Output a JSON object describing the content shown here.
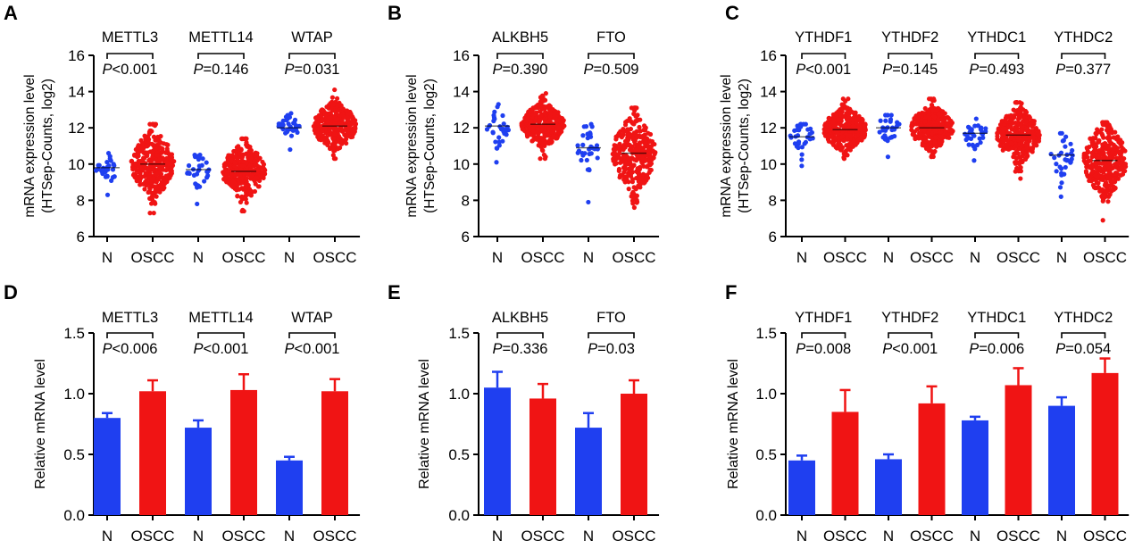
{
  "colors": {
    "normal": "#1f3ff0",
    "oscc": "#f01414",
    "axis": "#000000"
  },
  "chart_data": [
    {
      "panel": "A",
      "type": "scatter",
      "ylabel": "mRNA expression level (HTSep-Counts, log2)",
      "ylim": [
        6,
        16
      ],
      "yticks": [
        6,
        8,
        10,
        12,
        14,
        16
      ],
      "categories": [
        "N",
        "OSCC",
        "N",
        "OSCC",
        "N",
        "OSCC"
      ],
      "genes": [
        {
          "name": "METTL3",
          "p": "<0.001"
        },
        {
          "name": "METTL14",
          "p": "=0.146"
        },
        {
          "name": "WTAP",
          "p": "=0.031"
        }
      ],
      "series": [
        {
          "group": "N",
          "n": 32,
          "median": 9.8,
          "spread": 0.45,
          "min": 8.3,
          "max": 10.6
        },
        {
          "group": "OSCC",
          "n": 330,
          "median": 10.0,
          "spread": 0.9,
          "min": 7.3,
          "max": 12.2
        },
        {
          "group": "N",
          "n": 32,
          "median": 9.7,
          "spread": 0.45,
          "min": 7.8,
          "max": 10.5
        },
        {
          "group": "OSCC",
          "n": 330,
          "median": 9.6,
          "spread": 0.75,
          "min": 7.4,
          "max": 11.4
        },
        {
          "group": "N",
          "n": 32,
          "median": 12.0,
          "spread": 0.35,
          "min": 10.8,
          "max": 12.8
        },
        {
          "group": "OSCC",
          "n": 330,
          "median": 12.1,
          "spread": 0.65,
          "min": 10.3,
          "max": 14.1
        }
      ]
    },
    {
      "panel": "B",
      "type": "scatter",
      "ylabel": "mRNA expression level (HTSep-Counts, log2)",
      "ylim": [
        6,
        16
      ],
      "yticks": [
        6,
        8,
        10,
        12,
        14,
        16
      ],
      "categories": [
        "N",
        "OSCC",
        "N",
        "OSCC"
      ],
      "genes": [
        {
          "name": "ALKBH5",
          "p": "=0.390"
        },
        {
          "name": "FTO",
          "p": "=0.509"
        }
      ],
      "series": [
        {
          "group": "N",
          "n": 32,
          "median": 12.1,
          "spread": 0.55,
          "min": 10.1,
          "max": 13.3
        },
        {
          "group": "OSCC",
          "n": 330,
          "median": 12.2,
          "spread": 0.6,
          "min": 10.3,
          "max": 13.9
        },
        {
          "group": "N",
          "n": 32,
          "median": 10.9,
          "spread": 0.7,
          "min": 7.9,
          "max": 12.2
        },
        {
          "group": "OSCC",
          "n": 330,
          "median": 10.6,
          "spread": 1.05,
          "min": 7.6,
          "max": 13.1
        }
      ]
    },
    {
      "panel": "C",
      "type": "scatter",
      "ylabel": "mRNA expression level (HTSep-Counts, log2)",
      "ylim": [
        6,
        16
      ],
      "yticks": [
        6,
        8,
        10,
        12,
        14,
        16
      ],
      "categories": [
        "N",
        "OSCC",
        "N",
        "OSCC",
        "N",
        "OSCC",
        "N",
        "OSCC"
      ],
      "genes": [
        {
          "name": "YTHDF1",
          "p": "<0.001"
        },
        {
          "name": "YTHDF2",
          "p": "=0.145"
        },
        {
          "name": "YTHDC1",
          "p": "=0.493"
        },
        {
          "name": "YTHDC2",
          "p": "=0.377"
        }
      ],
      "series": [
        {
          "group": "N",
          "n": 32,
          "median": 11.5,
          "spread": 0.4,
          "min": 9.9,
          "max": 12.2
        },
        {
          "group": "OSCC",
          "n": 330,
          "median": 11.9,
          "spread": 0.6,
          "min": 10.3,
          "max": 13.6
        },
        {
          "group": "N",
          "n": 32,
          "median": 12.0,
          "spread": 0.4,
          "min": 10.4,
          "max": 12.7
        },
        {
          "group": "OSCC",
          "n": 330,
          "median": 12.0,
          "spread": 0.6,
          "min": 10.4,
          "max": 13.6
        },
        {
          "group": "N",
          "n": 32,
          "median": 11.7,
          "spread": 0.45,
          "min": 10.2,
          "max": 12.5
        },
        {
          "group": "OSCC",
          "n": 330,
          "median": 11.6,
          "spread": 0.75,
          "min": 9.2,
          "max": 13.4
        },
        {
          "group": "N",
          "n": 32,
          "median": 10.5,
          "spread": 0.6,
          "min": 8.2,
          "max": 11.7
        },
        {
          "group": "OSCC",
          "n": 330,
          "median": 10.2,
          "spread": 1.0,
          "min": 6.9,
          "max": 12.3
        }
      ]
    },
    {
      "panel": "D",
      "type": "bar",
      "ylabel": "Relative mRNA level",
      "ylim": [
        0,
        1.5
      ],
      "yticks": [
        "0.0",
        "0.5",
        "1.0",
        "1.5"
      ],
      "categories": [
        "N",
        "OSCC",
        "N",
        "OSCC",
        "N",
        "OSCC"
      ],
      "genes": [
        {
          "name": "METTL3",
          "p": "<0.006"
        },
        {
          "name": "METTL14",
          "p": "<0.001"
        },
        {
          "name": "WTAP",
          "p": "<0.001"
        }
      ],
      "values": [
        0.8,
        1.02,
        0.72,
        1.03,
        0.45,
        1.02
      ],
      "errors": [
        0.04,
        0.09,
        0.06,
        0.13,
        0.03,
        0.1
      ]
    },
    {
      "panel": "E",
      "type": "bar",
      "ylabel": "Relative mRNA level",
      "ylim": [
        0,
        1.5
      ],
      "yticks": [
        "0.0",
        "0.5",
        "1.0",
        "1.5"
      ],
      "categories": [
        "N",
        "OSCC",
        "N",
        "OSCC"
      ],
      "genes": [
        {
          "name": "ALKBH5",
          "p": "=0.336"
        },
        {
          "name": "FTO",
          "p": "=0.03"
        }
      ],
      "values": [
        1.05,
        0.96,
        0.72,
        1.0
      ],
      "errors": [
        0.13,
        0.12,
        0.12,
        0.11
      ]
    },
    {
      "panel": "F",
      "type": "bar",
      "ylabel": "Relative mRNA level",
      "ylim": [
        0,
        1.5
      ],
      "yticks": [
        "0.0",
        "0.5",
        "1.0",
        "1.5"
      ],
      "categories": [
        "N",
        "OSCC",
        "N",
        "OSCC",
        "N",
        "OSCC",
        "N",
        "OSCC"
      ],
      "genes": [
        {
          "name": "YTHDF1",
          "p": "=0.008"
        },
        {
          "name": "YTHDF2",
          "p": "<0.001"
        },
        {
          "name": "YTHDC1",
          "p": "=0.006"
        },
        {
          "name": "YTHDC2",
          "p": "=0.054"
        }
      ],
      "values": [
        0.45,
        0.85,
        0.46,
        0.92,
        0.78,
        1.07,
        0.9,
        1.17
      ],
      "errors": [
        0.04,
        0.18,
        0.04,
        0.14,
        0.03,
        0.14,
        0.07,
        0.12
      ]
    }
  ]
}
